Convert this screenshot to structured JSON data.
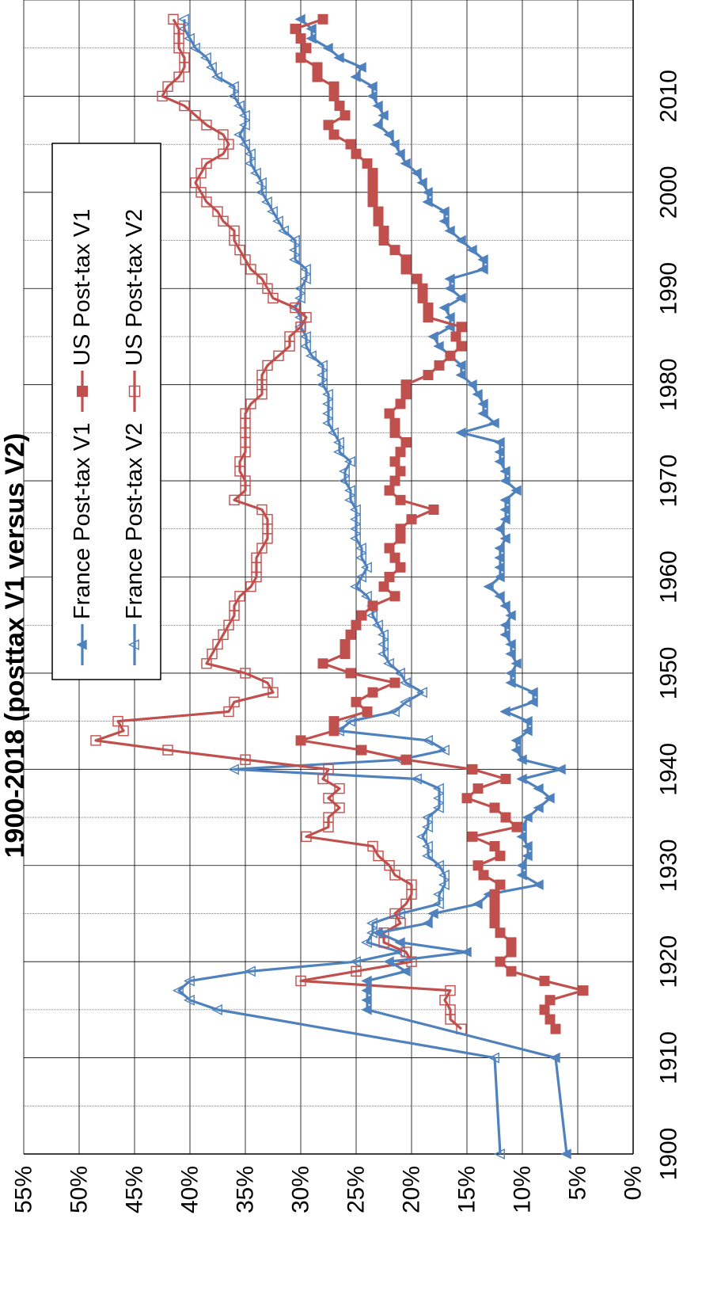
{
  "chart_data": {
    "type": "line",
    "title": "1900-2018 (posttax V1 versus V2)",
    "xlabel": "",
    "ylabel": "",
    "xlim": [
      1900,
      2020
    ],
    "ylim": [
      0,
      55
    ],
    "x_ticks": [
      "1900",
      "1910",
      "1920",
      "1930",
      "1940",
      "1950",
      "1960",
      "1970",
      "1980",
      "1990",
      "2000",
      "2010"
    ],
    "y_ticks": [
      "0%",
      "5%",
      "10%",
      "15%",
      "20%",
      "25%",
      "30%",
      "35%",
      "40%",
      "45%",
      "50%",
      "55%"
    ],
    "orientation": "rotated-90-clockwise",
    "grid": true,
    "legend_position": "upper-middle",
    "series": [
      {
        "name": "France Post-tax V1",
        "color": "#4F81BD",
        "marker": "filled-triangle",
        "x": [
          1900,
          1910,
          1915,
          1916,
          1917,
          1918,
          1919,
          1920,
          1921,
          1922,
          1923,
          1924,
          1925,
          1926,
          1927,
          1928,
          1929,
          1930,
          1931,
          1932,
          1933,
          1934,
          1935,
          1936,
          1937,
          1938,
          1939,
          1940,
          1941,
          1942,
          1943,
          1944,
          1945,
          1946,
          1947,
          1948,
          1949,
          1950,
          1951,
          1952,
          1953,
          1954,
          1955,
          1956,
          1957,
          1958,
          1959,
          1960,
          1961,
          1962,
          1963,
          1964,
          1965,
          1966,
          1967,
          1968,
          1969,
          1970,
          1971,
          1972,
          1973,
          1974,
          1975,
          1976,
          1977,
          1978,
          1979,
          1980,
          1981,
          1982,
          1983,
          1984,
          1985,
          1986,
          1987,
          1988,
          1989,
          1990,
          1991,
          1992,
          1993,
          1994,
          1995,
          1996,
          1997,
          1998,
          1999,
          2000,
          2001,
          2002,
          2003,
          2004,
          2005,
          2006,
          2007,
          2008,
          2009,
          2010,
          2011,
          2012,
          2013,
          2014,
          2015,
          2016,
          2017,
          2018
        ],
        "values": [
          6.0,
          7.0,
          24.0,
          24.0,
          24.0,
          24.0,
          20.5,
          22.0,
          15.0,
          21.0,
          23.0,
          18.5,
          18.0,
          14.0,
          13.0,
          8.5,
          10.0,
          10.0,
          9.5,
          9.5,
          10.0,
          10.0,
          9.5,
          8.5,
          7.5,
          8.5,
          10.0,
          6.5,
          10.0,
          10.5,
          10.5,
          9.5,
          9.5,
          11.5,
          9.0,
          9.0,
          11.0,
          11.0,
          10.5,
          11.0,
          11.0,
          11.5,
          11.5,
          11.0,
          11.5,
          12.0,
          13.0,
          12.0,
          12.0,
          12.0,
          12.0,
          11.5,
          12.0,
          11.5,
          11.5,
          11.5,
          10.5,
          11.5,
          11.5,
          12.0,
          12.0,
          12.0,
          15.5,
          12.5,
          13.5,
          13.5,
          14.0,
          14.5,
          15.5,
          15.5,
          16.5,
          17.5,
          18.0,
          16.5,
          16.5,
          17.0,
          15.5,
          16.5,
          16.5,
          13.5,
          13.5,
          14.5,
          15.5,
          16.5,
          17.0,
          17.0,
          18.5,
          18.5,
          19.0,
          19.5,
          20.5,
          21.0,
          21.5,
          22.0,
          23.0,
          22.5,
          23.0,
          23.5,
          23.5,
          25.0,
          24.5,
          26.5,
          27.5,
          29.0,
          29.0,
          30.0
        ]
      },
      {
        "name": "US Post-tax V1",
        "color": "#C0504D",
        "marker": "filled-square",
        "x": [
          1913,
          1914,
          1915,
          1916,
          1917,
          1918,
          1919,
          1920,
          1921,
          1922,
          1923,
          1924,
          1925,
          1926,
          1927,
          1928,
          1929,
          1930,
          1931,
          1932,
          1933,
          1934,
          1935,
          1936,
          1937,
          1938,
          1939,
          1940,
          1941,
          1942,
          1943,
          1944,
          1945,
          1946,
          1947,
          1948,
          1949,
          1950,
          1951,
          1952,
          1953,
          1954,
          1955,
          1956,
          1957,
          1958,
          1959,
          1960,
          1961,
          1962,
          1963,
          1964,
          1965,
          1966,
          1967,
          1968,
          1969,
          1970,
          1971,
          1972,
          1973,
          1974,
          1975,
          1976,
          1977,
          1978,
          1979,
          1980,
          1981,
          1982,
          1983,
          1984,
          1985,
          1986,
          1987,
          1988,
          1989,
          1990,
          1991,
          1992,
          1993,
          1994,
          1995,
          1996,
          1997,
          1998,
          1999,
          2000,
          2001,
          2002,
          2003,
          2004,
          2005,
          2006,
          2007,
          2008,
          2009,
          2010,
          2011,
          2012,
          2013,
          2014,
          2015,
          2016,
          2017,
          2018
        ],
        "values": [
          7.0,
          7.5,
          8.0,
          7.5,
          4.5,
          8.0,
          11.0,
          12.0,
          11.0,
          11.0,
          12.0,
          12.5,
          12.5,
          12.5,
          12.5,
          12.0,
          13.5,
          14.0,
          12.0,
          12.5,
          14.5,
          10.5,
          11.5,
          12.5,
          15.0,
          14.0,
          11.5,
          14.5,
          20.5,
          24.5,
          30.0,
          27.0,
          27.0,
          24.0,
          25.0,
          23.5,
          21.5,
          25.5,
          28.0,
          26.0,
          26.0,
          25.5,
          25.0,
          24.5,
          23.5,
          21.5,
          22.5,
          22.0,
          21.0,
          21.5,
          22.0,
          21.0,
          21.0,
          20.0,
          18.0,
          21.0,
          22.0,
          21.5,
          21.0,
          21.5,
          21.0,
          20.5,
          21.5,
          21.5,
          22.0,
          21.0,
          20.5,
          20.5,
          18.5,
          17.5,
          16.5,
          15.5,
          16.0,
          15.5,
          18.5,
          18.5,
          19.0,
          19.0,
          19.5,
          20.5,
          20.5,
          21.5,
          22.5,
          22.5,
          23.0,
          23.0,
          23.5,
          23.5,
          23.5,
          23.5,
          24.0,
          25.0,
          25.5,
          27.0,
          27.5,
          26.0,
          26.5,
          27.0,
          27.0,
          28.5,
          28.5,
          30.0,
          29.5,
          30.0,
          30.5,
          28.0
        ]
      },
      {
        "name": "France Post-tax V2",
        "color": "#4F81BD",
        "marker": "open-triangle",
        "x": [
          1900,
          1910,
          1915,
          1916,
          1917,
          1918,
          1919,
          1920,
          1921,
          1922,
          1923,
          1924,
          1925,
          1926,
          1927,
          1928,
          1929,
          1930,
          1931,
          1932,
          1933,
          1934,
          1935,
          1936,
          1937,
          1938,
          1939,
          1940,
          1941,
          1942,
          1943,
          1944,
          1945,
          1946,
          1947,
          1948,
          1949,
          1950,
          1951,
          1952,
          1953,
          1954,
          1955,
          1956,
          1957,
          1958,
          1959,
          1960,
          1961,
          1962,
          1963,
          1964,
          1965,
          1966,
          1967,
          1968,
          1969,
          1970,
          1971,
          1972,
          1973,
          1974,
          1975,
          1976,
          1977,
          1978,
          1979,
          1980,
          1981,
          1982,
          1983,
          1984,
          1985,
          1986,
          1987,
          1988,
          1989,
          1990,
          1991,
          1992,
          1993,
          1994,
          1995,
          1996,
          1997,
          1998,
          1999,
          2000,
          2001,
          2002,
          2003,
          2004,
          2005,
          2006,
          2007,
          2008,
          2009,
          2010,
          2011,
          2012,
          2013,
          2014,
          2015,
          2016,
          2017,
          2018
        ],
        "values": [
          12.0,
          12.5,
          37.5,
          40.0,
          41.0,
          40.0,
          34.5,
          25.0,
          21.0,
          24.0,
          23.5,
          23.5,
          21.0,
          17.5,
          17.5,
          17.0,
          17.0,
          17.5,
          18.5,
          18.5,
          19.0,
          18.5,
          18.5,
          17.5,
          17.5,
          17.5,
          19.5,
          36.0,
          21.0,
          17.0,
          18.5,
          26.5,
          25.5,
          21.5,
          20.5,
          19.0,
          20.5,
          21.0,
          22.0,
          22.5,
          22.5,
          22.5,
          23.0,
          23.5,
          23.5,
          24.0,
          25.0,
          24.5,
          24.0,
          24.5,
          24.5,
          25.0,
          25.0,
          25.0,
          25.0,
          25.5,
          25.5,
          26.0,
          26.0,
          25.5,
          26.5,
          26.5,
          27.0,
          27.5,
          27.5,
          27.5,
          27.5,
          28.0,
          28.0,
          28.0,
          29.0,
          29.5,
          29.5,
          30.0,
          30.0,
          30.5,
          30.0,
          30.0,
          29.5,
          29.5,
          30.5,
          30.5,
          30.5,
          31.5,
          32.0,
          32.5,
          33.0,
          33.5,
          33.5,
          34.0,
          34.5,
          34.5,
          35.0,
          35.5,
          35.0,
          35.0,
          35.5,
          36.0,
          36.0,
          37.5,
          38.0,
          38.5,
          39.5,
          40.0,
          40.5,
          40.5
        ]
      },
      {
        "name": "US Post-tax V2",
        "color": "#C0504D",
        "marker": "open-square",
        "x": [
          1913,
          1914,
          1915,
          1916,
          1917,
          1918,
          1919,
          1920,
          1921,
          1922,
          1923,
          1924,
          1925,
          1926,
          1927,
          1928,
          1929,
          1930,
          1931,
          1932,
          1933,
          1934,
          1935,
          1936,
          1937,
          1938,
          1939,
          1940,
          1941,
          1942,
          1943,
          1944,
          1945,
          1946,
          1947,
          1948,
          1949,
          1950,
          1951,
          1952,
          1953,
          1954,
          1955,
          1956,
          1957,
          1958,
          1959,
          1960,
          1961,
          1962,
          1963,
          1964,
          1965,
          1966,
          1967,
          1968,
          1969,
          1970,
          1971,
          1972,
          1973,
          1974,
          1975,
          1976,
          1977,
          1978,
          1979,
          1980,
          1981,
          1982,
          1983,
          1984,
          1985,
          1986,
          1987,
          1988,
          1989,
          1990,
          1991,
          1992,
          1993,
          1994,
          1995,
          1996,
          1997,
          1998,
          1999,
          2000,
          2001,
          2002,
          2003,
          2004,
          2005,
          2006,
          2007,
          2008,
          2009,
          2010,
          2011,
          2012,
          2013,
          2014,
          2015,
          2016,
          2017,
          2018
        ],
        "values": [
          15.5,
          16.5,
          16.5,
          17.0,
          16.5,
          30.0,
          25.0,
          20.0,
          20.5,
          22.5,
          22.5,
          21.0,
          21.5,
          20.5,
          20.0,
          20.0,
          21.5,
          22.0,
          23.0,
          23.5,
          29.5,
          27.5,
          27.5,
          26.5,
          27.5,
          26.5,
          28.0,
          27.5,
          35.0,
          42.0,
          48.5,
          46.0,
          46.5,
          36.5,
          36.0,
          32.5,
          33.0,
          35.0,
          38.5,
          38.0,
          37.5,
          37.0,
          36.5,
          36.0,
          36.0,
          35.5,
          34.5,
          34.0,
          34.0,
          34.0,
          33.5,
          33.0,
          33.0,
          33.0,
          33.5,
          36.0,
          35.0,
          35.0,
          35.5,
          35.5,
          35.0,
          35.0,
          35.0,
          35.0,
          35.0,
          34.5,
          33.5,
          33.5,
          33.5,
          33.0,
          32.0,
          31.0,
          31.0,
          30.0,
          29.5,
          30.5,
          32.5,
          33.0,
          33.5,
          34.5,
          35.0,
          35.5,
          36.0,
          36.0,
          37.0,
          37.5,
          38.5,
          39.0,
          39.5,
          39.0,
          38.5,
          37.0,
          36.5,
          37.0,
          38.5,
          39.5,
          40.5,
          42.5,
          42.0,
          41.0,
          40.5,
          40.5,
          41.0,
          41.0,
          41.0,
          41.5
        ]
      }
    ]
  }
}
